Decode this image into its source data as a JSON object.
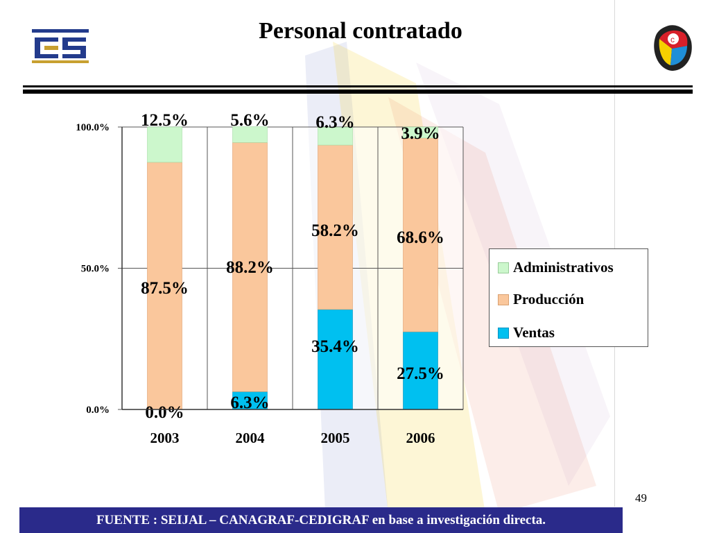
{
  "slide": {
    "title": "Personal contratado",
    "page_number": "49",
    "footer": "FUENTE :  SEIJAL – CANAGRAF-CEDIGRAF en base a investigación directa."
  },
  "colors": {
    "administrativos": "#ccf7cc",
    "produccion": "#fac79c",
    "ventas": "#00c0f0",
    "footer_bg": "#2a2a8a"
  },
  "chart_data": {
    "type": "bar",
    "stacked": true,
    "categories": [
      "2003",
      "2004",
      "2005",
      "2006"
    ],
    "series": [
      {
        "name": "Ventas",
        "values": [
          0.0,
          6.3,
          35.4,
          27.5
        ],
        "labels": [
          "0.0%",
          "6.3%",
          "35.4%",
          "27.5%"
        ]
      },
      {
        "name": "Producción",
        "values": [
          87.5,
          88.2,
          58.2,
          68.6
        ],
        "labels": [
          "87.5%",
          "88.2%",
          "58.2%",
          "68.6%"
        ]
      },
      {
        "name": "Administrativos",
        "values": [
          12.5,
          5.6,
          6.3,
          3.9
        ],
        "labels": [
          "12.5%",
          "5.6%",
          "6.3%",
          "3.9%"
        ]
      }
    ],
    "yticks": [
      "0.0%",
      "50.0%",
      "100.0%"
    ],
    "ylim": [
      0,
      100
    ],
    "legend": [
      "Administrativos",
      "Producción",
      "Ventas"
    ],
    "legend_position": "right"
  }
}
